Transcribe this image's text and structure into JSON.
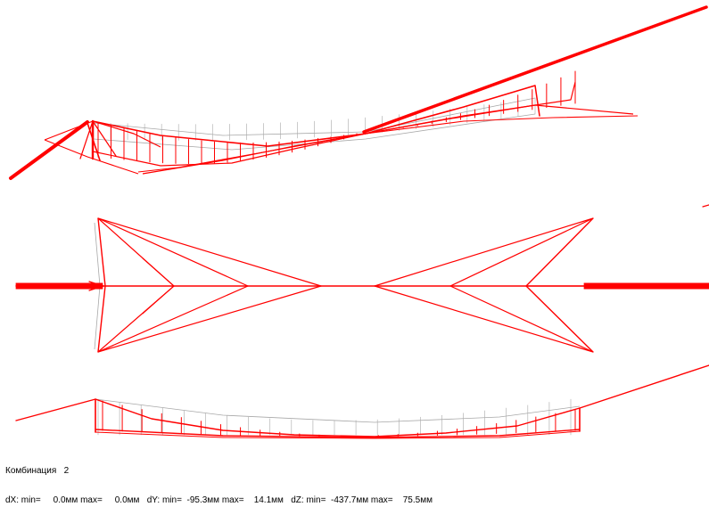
{
  "colors": {
    "deformed": "#ff0000",
    "undeformed": "#a8a8a8",
    "text": "#000000",
    "background": "#ffffff"
  },
  "status": {
    "combination_label": "Комбинация",
    "combination_number": "2",
    "dx_min_label": "dX: min=",
    "dx_min": "0.0мм",
    "dx_max_label": "max=",
    "dx_max": "0.0мм",
    "dy_min_label": "dY: min=",
    "dy_min": "-95.3мм",
    "dy_max_label": "max=",
    "dy_max": "14.1мм",
    "dz_min_label": "dZ: min=",
    "dz_min": "-437.7мм",
    "dz_max_label": "max=",
    "dz_max": "75.5мм"
  }
}
